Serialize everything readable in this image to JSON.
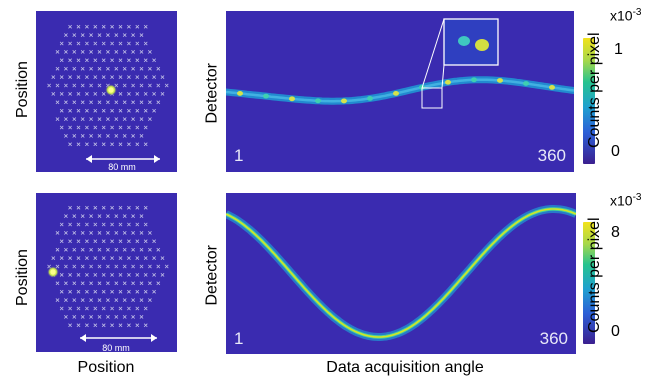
{
  "labels": {
    "position": "Position",
    "detector": "Detector",
    "counts_per_pixel": "Counts per pixel",
    "bottom_position": "Position",
    "bottom_angle": "Data acquisition angle",
    "scale_bar": "80 mm"
  },
  "top_row": {
    "angle_start": "1",
    "angle_end": "360",
    "colorbar": {
      "exponent_base": "x10",
      "exponent_power": "-3",
      "max_label": "1",
      "min_label": "0"
    }
  },
  "bottom_row": {
    "angle_start": "1",
    "angle_end": "360",
    "colorbar": {
      "exponent_base": "x10",
      "exponent_power": "-3",
      "max_label": "8",
      "min_label": "0"
    }
  },
  "colors": {
    "background": "#3a2bb0",
    "sinogram_low": "#1f9bd6",
    "sinogram_high": "#e6e51a",
    "colorbar_stops": [
      "#3b1f8f",
      "#2c5fd6",
      "#1fa0d0",
      "#27c38f",
      "#a6d84a",
      "#f2e21b"
    ],
    "marker": "#d8d8f0"
  }
}
